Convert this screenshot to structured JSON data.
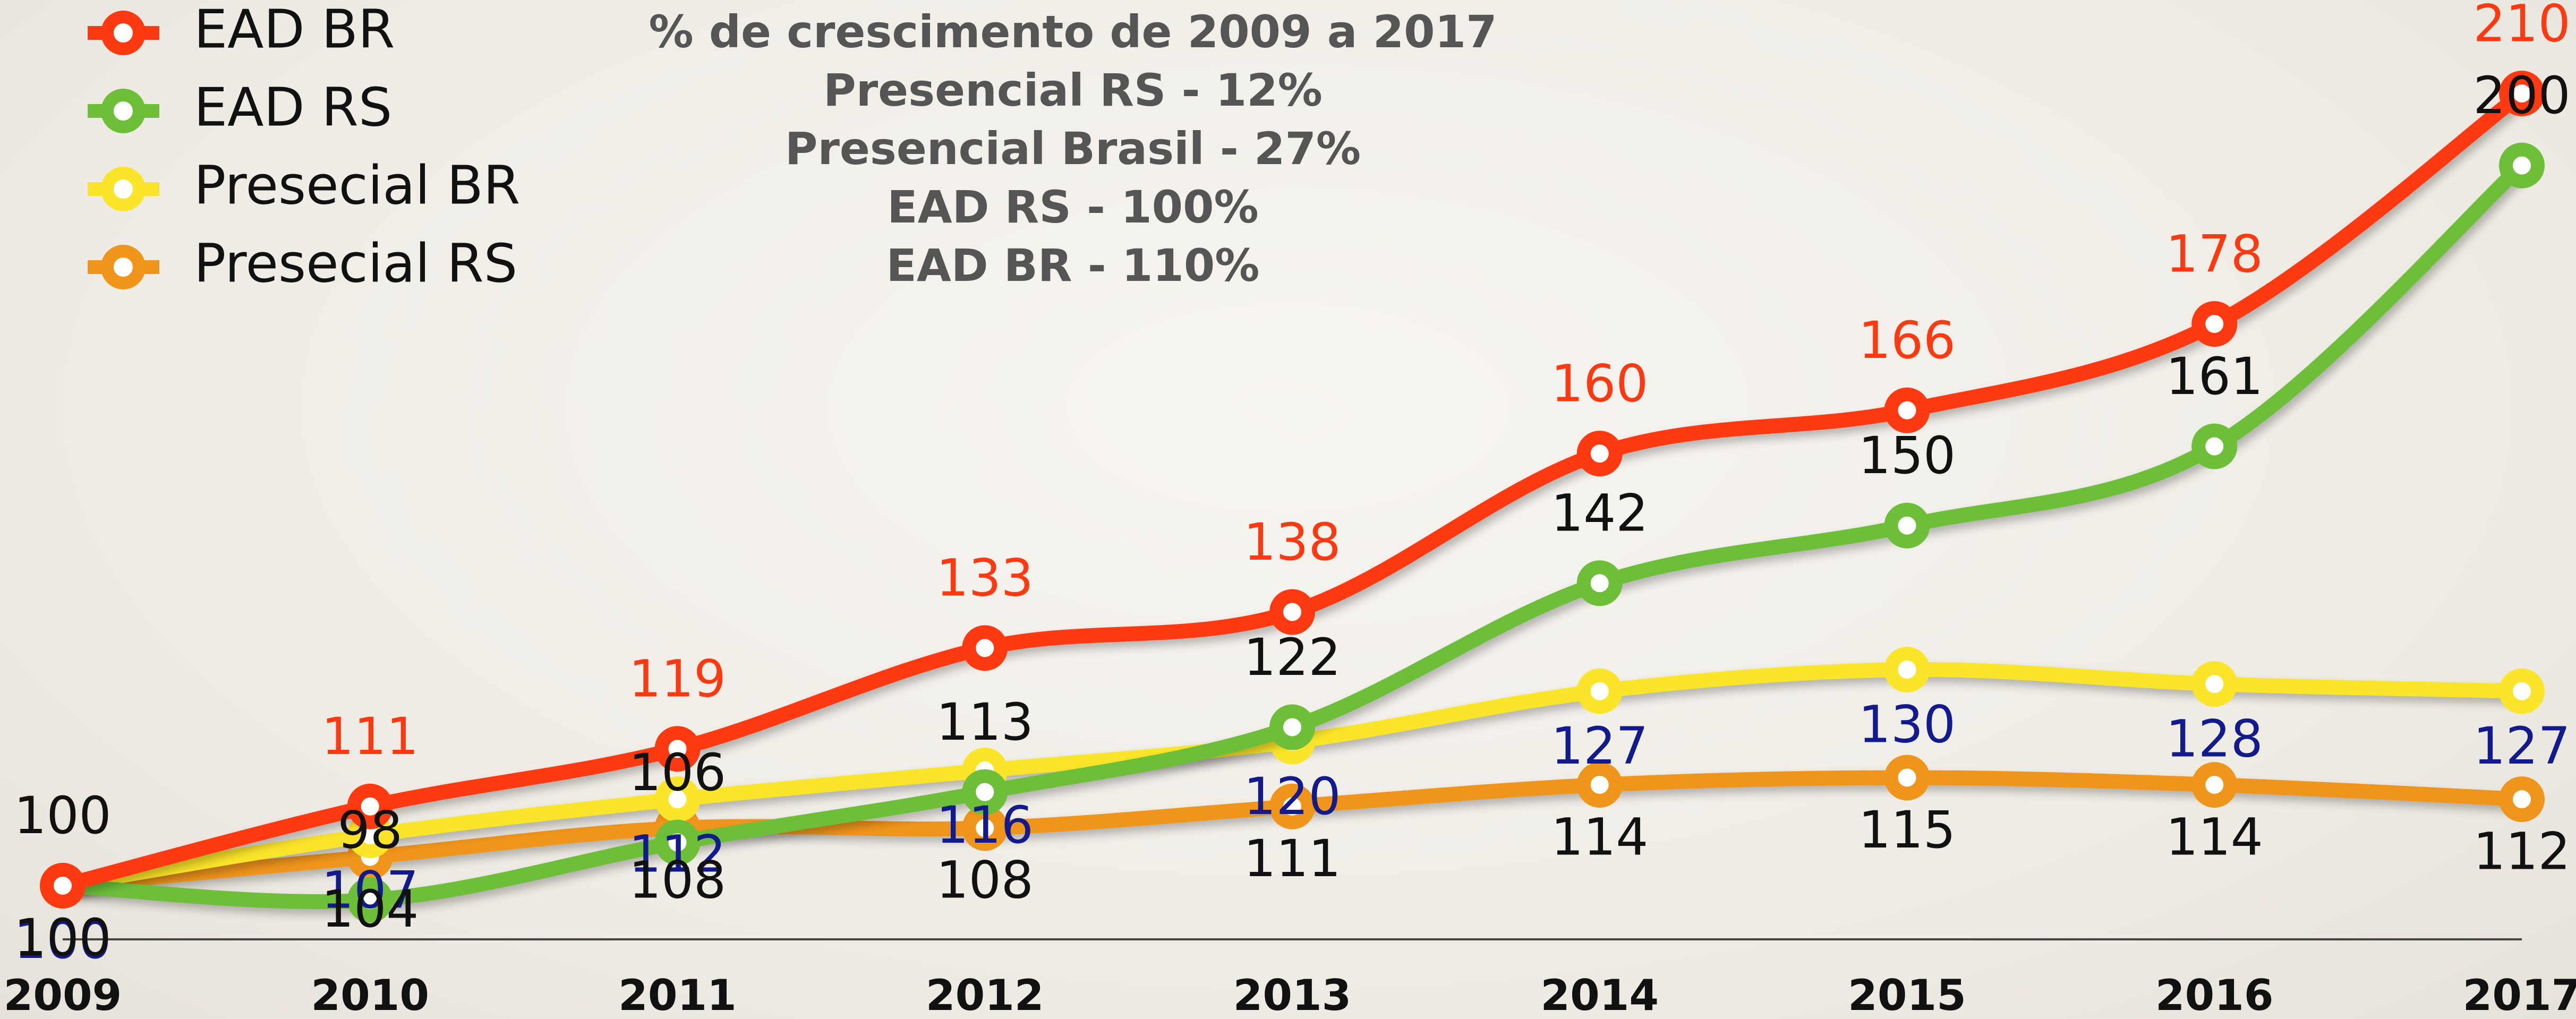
{
  "chart_data": {
    "type": "line",
    "annotations": [
      "% de crescimento de 2009 a 2017",
      "Presencial RS - 12%",
      "Presencial Brasil - 27%",
      "EAD RS - 100%",
      "EAD BR - 110%"
    ],
    "categories": [
      "2009",
      "2010",
      "2011",
      "2012",
      "2013",
      "2014",
      "2015",
      "2016",
      "2017"
    ],
    "series": [
      {
        "name": "EAD BR",
        "color": "#ff3a12",
        "label_color": "#ff3a12",
        "values": [
          100,
          111,
          119,
          133,
          138,
          160,
          166,
          178,
          210
        ]
      },
      {
        "name": "EAD RS",
        "color": "#6dbf3a",
        "label_color": "#111111",
        "values": [
          100,
          98,
          106,
          113,
          122,
          142,
          150,
          161,
          200
        ]
      },
      {
        "name": "Presecial BR",
        "color": "#fbe52a",
        "label_color": "#121a8c",
        "values": [
          100,
          107,
          112,
          116,
          120,
          127,
          130,
          128,
          127
        ]
      },
      {
        "name": "Presecial RS",
        "color": "#f0951c",
        "label_color": "#111111",
        "values": [
          100,
          104,
          108,
          108,
          111,
          114,
          115,
          114,
          112
        ]
      }
    ]
  }
}
